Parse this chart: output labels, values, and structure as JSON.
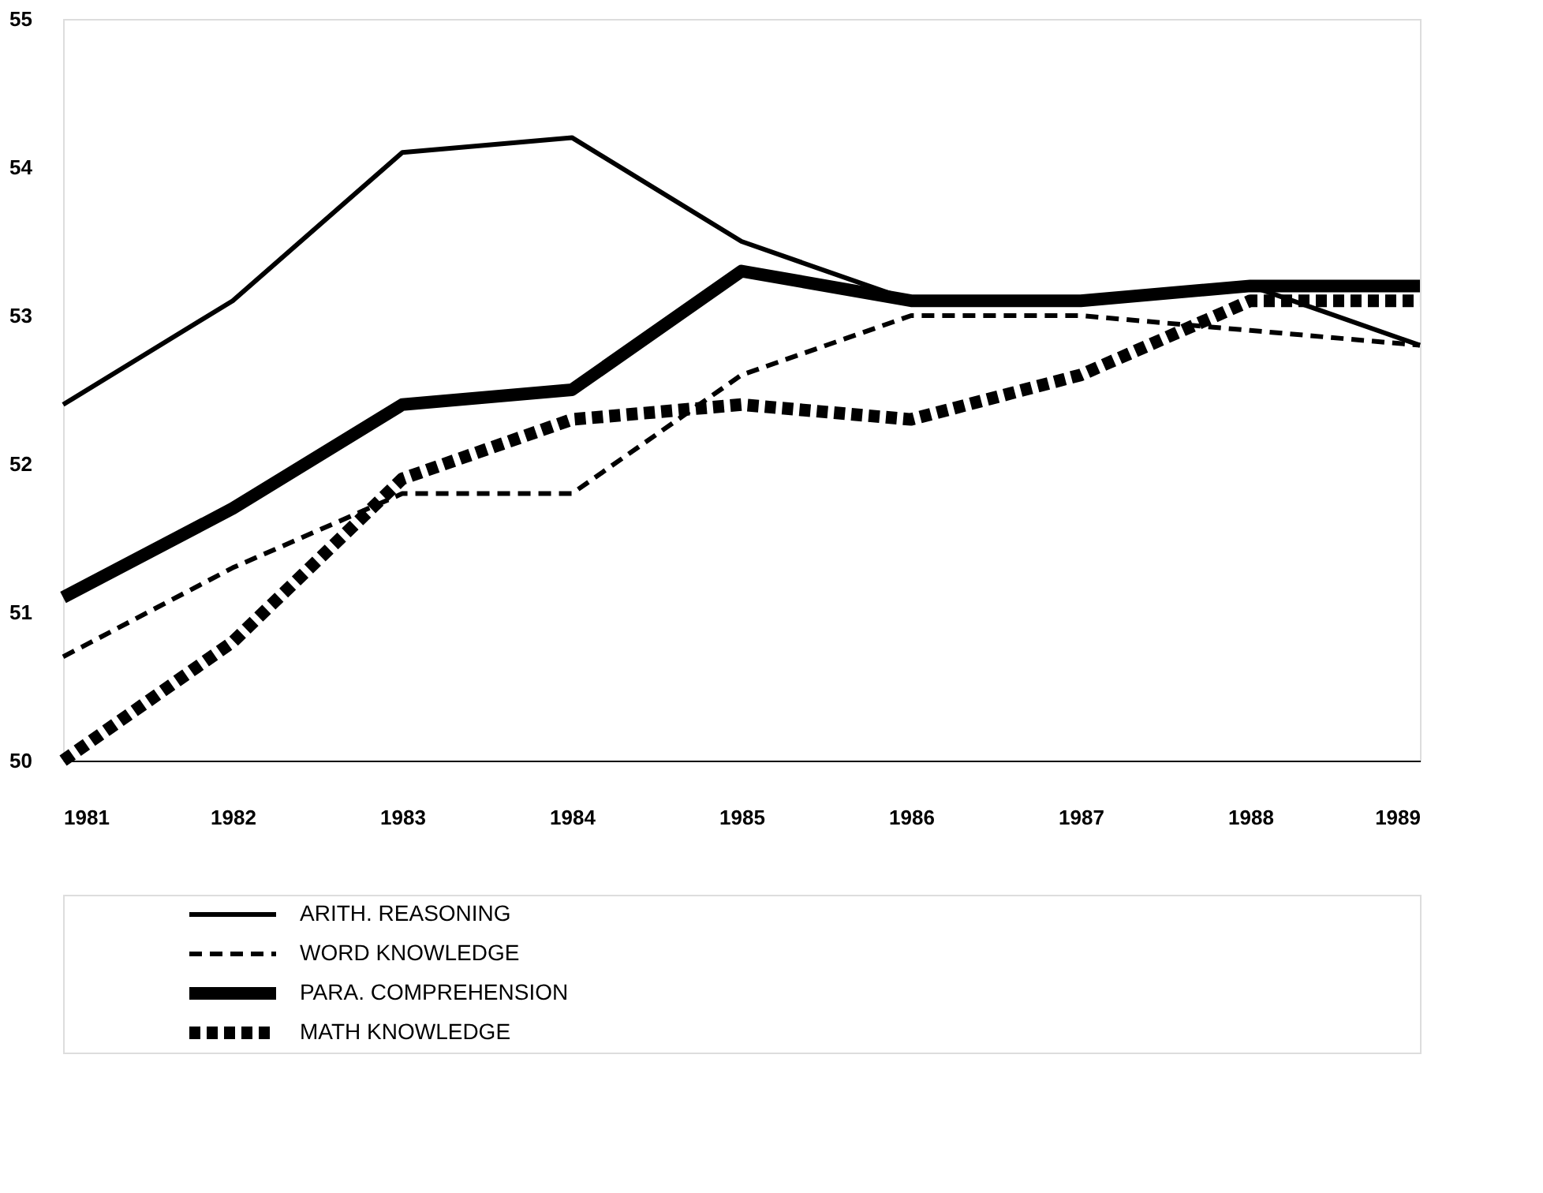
{
  "chart_data": {
    "type": "line",
    "x": [
      1981,
      1982,
      1983,
      1984,
      1985,
      1986,
      1987,
      1988,
      1989
    ],
    "series": [
      {
        "name": "ARITH. REASONING",
        "color": "#000000",
        "line_style": "solid",
        "values": [
          52.4,
          53.1,
          54.1,
          54.2,
          53.5,
          53.1,
          53.1,
          53.2,
          52.8
        ]
      },
      {
        "name": "WORD KNOWLEDGE",
        "color": "#000000",
        "line_style": "dashed",
        "values": [
          50.7,
          51.3,
          51.8,
          51.8,
          52.6,
          53.0,
          53.0,
          52.9,
          52.8
        ]
      },
      {
        "name": "PARA. COMPREHENSION",
        "color": "#000000",
        "line_style": "solid",
        "values": [
          51.1,
          51.7,
          52.4,
          52.5,
          53.3,
          53.1,
          53.1,
          53.2,
          53.2
        ]
      },
      {
        "name": "MATH KNOWLEDGE",
        "color": "#000000",
        "line_style": "dotted",
        "values": [
          50.0,
          50.8,
          51.9,
          52.3,
          52.4,
          52.3,
          52.6,
          53.1,
          53.1
        ]
      }
    ],
    "xlim": [
      1981,
      1989
    ],
    "xticks": [
      1981,
      1982,
      1983,
      1984,
      1985,
      1986,
      1987,
      1988,
      1989
    ],
    "ylim": [
      50,
      55
    ],
    "yticks": [
      50,
      51,
      52,
      53,
      54,
      55
    ],
    "grid": false,
    "legend": "bottom left",
    "marker": "none"
  }
}
